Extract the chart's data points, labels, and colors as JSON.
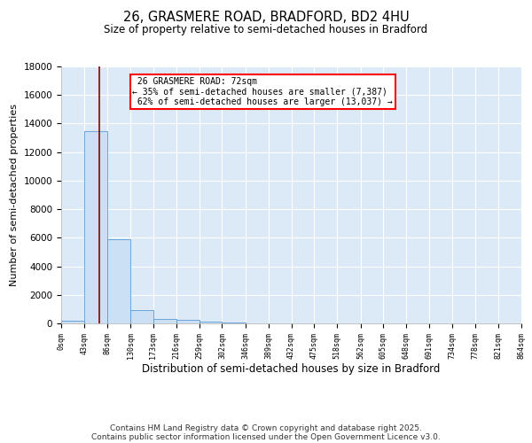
{
  "title_line1": "26, GRASMERE ROAD, BRADFORD, BD2 4HU",
  "title_line2": "Size of property relative to semi-detached houses in Bradford",
  "xlabel": "Distribution of semi-detached houses by size in Bradford",
  "ylabel": "Number of semi-detached properties",
  "property_size": 72,
  "property_label": "26 GRASMERE ROAD: 72sqm",
  "pct_smaller": 35,
  "pct_larger": 62,
  "n_smaller": 7387,
  "n_larger": 13037,
  "bar_color": "#cce0f5",
  "bar_edge_color": "#5b9bd5",
  "vline_color": "#8b0000",
  "annotation_edge_color": "red",
  "bin_edges": [
    0,
    43,
    86,
    130,
    173,
    216,
    259,
    302,
    346,
    389,
    432,
    475,
    518,
    562,
    605,
    648,
    691,
    734,
    778,
    821,
    864
  ],
  "bin_counts": [
    200,
    13450,
    5900,
    950,
    310,
    260,
    120,
    50,
    10,
    5,
    3,
    2,
    1,
    1,
    0,
    0,
    0,
    0,
    0,
    0
  ],
  "ylim": [
    0,
    18000
  ],
  "yticks": [
    0,
    2000,
    4000,
    6000,
    8000,
    10000,
    12000,
    14000,
    16000,
    18000
  ],
  "background_color": "#dce9f7",
  "grid_color": "#ffffff",
  "footer_line1": "Contains HM Land Registry data © Crown copyright and database right 2025.",
  "footer_line2": "Contains public sector information licensed under the Open Government Licence v3.0."
}
